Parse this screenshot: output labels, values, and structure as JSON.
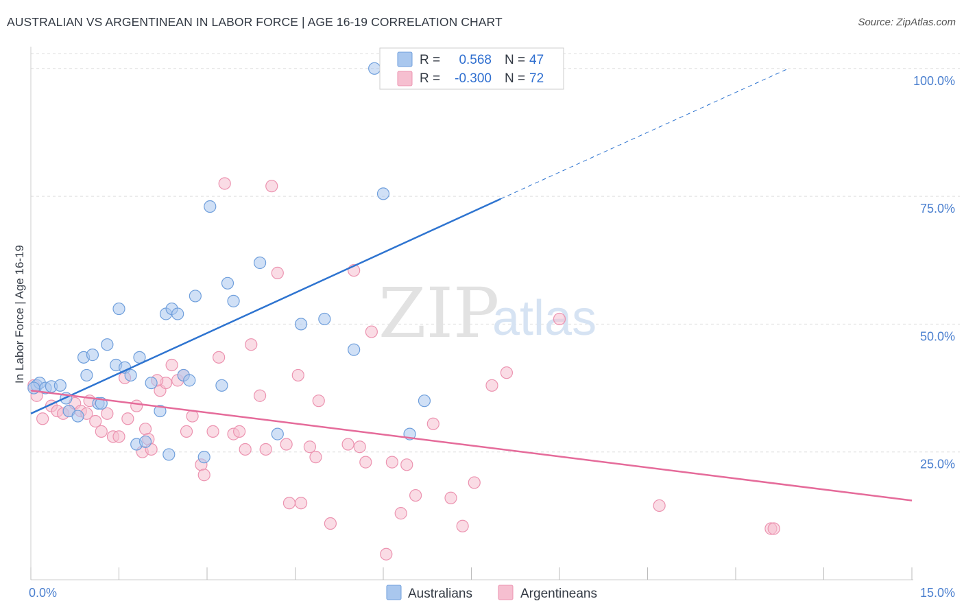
{
  "header": {
    "title": "AUSTRALIAN VS ARGENTINEAN IN LABOR FORCE | AGE 16-19 CORRELATION CHART",
    "source": "Source: ZipAtlas.com"
  },
  "watermark": {
    "zip": "ZIP",
    "atlas": "atlas"
  },
  "colors": {
    "australians_fill": "#a9c7ee",
    "australians_stroke": "#6f9fdc",
    "australians_line": "#2e74d0",
    "argentineans_fill": "#f6bfd0",
    "argentineans_stroke": "#ec93b0",
    "argentineans_line": "#e56b9a",
    "grid": "#dddddd",
    "tick_label": "#4a7fcf"
  },
  "legend": {
    "rows": [
      {
        "r_label": "R =",
        "r_value": "0.568",
        "n_label": "N =",
        "n_value": "47"
      },
      {
        "r_label": "R =",
        "r_value": "-0.300",
        "n_label": "N =",
        "n_value": "72"
      }
    ]
  },
  "bottom_legend": [
    "Australians",
    "Argentineans"
  ],
  "chart_data": {
    "type": "scatter",
    "ylabel": "In Labor Force | Age 16-19",
    "xlabel": "",
    "xlim": [
      0,
      15
    ],
    "ylim": [
      0,
      104
    ],
    "x_tick_labels": [
      "0.0%",
      "15.0%"
    ],
    "y_ticks": [
      25,
      50,
      75,
      100
    ],
    "y_tick_labels": [
      "25.0%",
      "50.0%",
      "75.0%",
      "100.0%"
    ],
    "grid": true,
    "legend_position": "top-center",
    "series": [
      {
        "name": "Australians",
        "r": 0.568,
        "n": 47,
        "trend": {
          "x0": 0,
          "y0": 32.5,
          "x1": 8.0,
          "y1": 74.5,
          "dashed_to_x": 12.9,
          "dashed_to_y": 100
        },
        "points": [
          [
            0.1,
            38.0
          ],
          [
            0.15,
            38.5
          ],
          [
            0.25,
            37.5
          ],
          [
            0.35,
            37.8
          ],
          [
            0.5,
            38.0
          ],
          [
            0.6,
            35.5
          ],
          [
            0.65,
            33.0
          ],
          [
            0.8,
            32.0
          ],
          [
            0.9,
            43.5
          ],
          [
            0.95,
            40.0
          ],
          [
            1.05,
            44.0
          ],
          [
            1.15,
            34.5
          ],
          [
            1.2,
            34.5
          ],
          [
            1.3,
            46.0
          ],
          [
            1.45,
            42.0
          ],
          [
            1.5,
            53.0
          ],
          [
            1.6,
            41.5
          ],
          [
            1.7,
            40.0
          ],
          [
            1.8,
            26.5
          ],
          [
            1.85,
            43.5
          ],
          [
            1.95,
            27.0
          ],
          [
            2.05,
            38.5
          ],
          [
            2.2,
            33.0
          ],
          [
            2.3,
            52.0
          ],
          [
            2.35,
            24.5
          ],
          [
            2.4,
            53.0
          ],
          [
            2.5,
            52.0
          ],
          [
            2.6,
            40.0
          ],
          [
            2.7,
            39.0
          ],
          [
            2.8,
            55.5
          ],
          [
            2.95,
            24.0
          ],
          [
            3.05,
            73.0
          ],
          [
            3.25,
            38.0
          ],
          [
            3.35,
            58.0
          ],
          [
            3.45,
            54.5
          ],
          [
            3.9,
            62.0
          ],
          [
            4.2,
            28.5
          ],
          [
            4.6,
            50.0
          ],
          [
            5.0,
            51.0
          ],
          [
            5.5,
            45.0
          ],
          [
            6.0,
            75.5
          ],
          [
            6.45,
            28.5
          ],
          [
            6.7,
            35.0
          ],
          [
            5.85,
            100.0
          ],
          [
            6.1,
            100.0
          ],
          [
            7.5,
            100.0
          ],
          [
            0.05,
            37.5
          ]
        ]
      },
      {
        "name": "Argentineans",
        "r": -0.3,
        "n": 72,
        "trend": {
          "x0": 0,
          "y0": 37.0,
          "x1": 15.0,
          "y1": 15.5
        },
        "points": [
          [
            0.05,
            38.0
          ],
          [
            0.2,
            31.5
          ],
          [
            0.35,
            34.0
          ],
          [
            0.45,
            33.0
          ],
          [
            0.55,
            32.5
          ],
          [
            0.65,
            33.0
          ],
          [
            0.75,
            34.5
          ],
          [
            0.85,
            33.0
          ],
          [
            0.95,
            32.5
          ],
          [
            1.1,
            31.0
          ],
          [
            1.2,
            29.0
          ],
          [
            1.3,
            32.5
          ],
          [
            1.4,
            28.0
          ],
          [
            1.5,
            28.0
          ],
          [
            1.6,
            39.5
          ],
          [
            1.65,
            31.5
          ],
          [
            1.8,
            34.0
          ],
          [
            1.9,
            25.0
          ],
          [
            1.95,
            29.5
          ],
          [
            2.0,
            27.5
          ],
          [
            2.05,
            25.5
          ],
          [
            2.2,
            37.0
          ],
          [
            2.3,
            38.5
          ],
          [
            2.4,
            42.0
          ],
          [
            2.5,
            39.0
          ],
          [
            2.6,
            40.0
          ],
          [
            2.65,
            29.0
          ],
          [
            2.75,
            32.0
          ],
          [
            2.9,
            22.5
          ],
          [
            2.95,
            20.5
          ],
          [
            3.1,
            29.0
          ],
          [
            3.2,
            43.5
          ],
          [
            3.3,
            77.5
          ],
          [
            3.45,
            28.5
          ],
          [
            3.55,
            29.0
          ],
          [
            3.65,
            25.5
          ],
          [
            3.75,
            46.0
          ],
          [
            3.9,
            36.0
          ],
          [
            4.0,
            25.5
          ],
          [
            4.1,
            77.0
          ],
          [
            4.2,
            60.0
          ],
          [
            4.35,
            26.5
          ],
          [
            4.4,
            15.0
          ],
          [
            4.55,
            40.0
          ],
          [
            4.6,
            15.0
          ],
          [
            4.75,
            26.0
          ],
          [
            4.85,
            24.0
          ],
          [
            4.9,
            35.0
          ],
          [
            5.1,
            11.0
          ],
          [
            5.4,
            26.5
          ],
          [
            5.5,
            60.5
          ],
          [
            5.6,
            26.0
          ],
          [
            5.7,
            23.0
          ],
          [
            5.8,
            48.5
          ],
          [
            6.05,
            5.0
          ],
          [
            6.15,
            23.0
          ],
          [
            6.3,
            13.0
          ],
          [
            6.4,
            22.5
          ],
          [
            6.55,
            16.5
          ],
          [
            6.85,
            30.5
          ],
          [
            7.15,
            16.0
          ],
          [
            7.35,
            10.5
          ],
          [
            7.55,
            19.0
          ],
          [
            7.85,
            38.0
          ],
          [
            8.1,
            40.5
          ],
          [
            9.0,
            51.0
          ],
          [
            10.7,
            14.5
          ],
          [
            12.6,
            10.0
          ],
          [
            12.65,
            10.0
          ],
          [
            0.1,
            36.0
          ],
          [
            1.0,
            35.0
          ],
          [
            2.15,
            39.0
          ]
        ]
      }
    ]
  }
}
